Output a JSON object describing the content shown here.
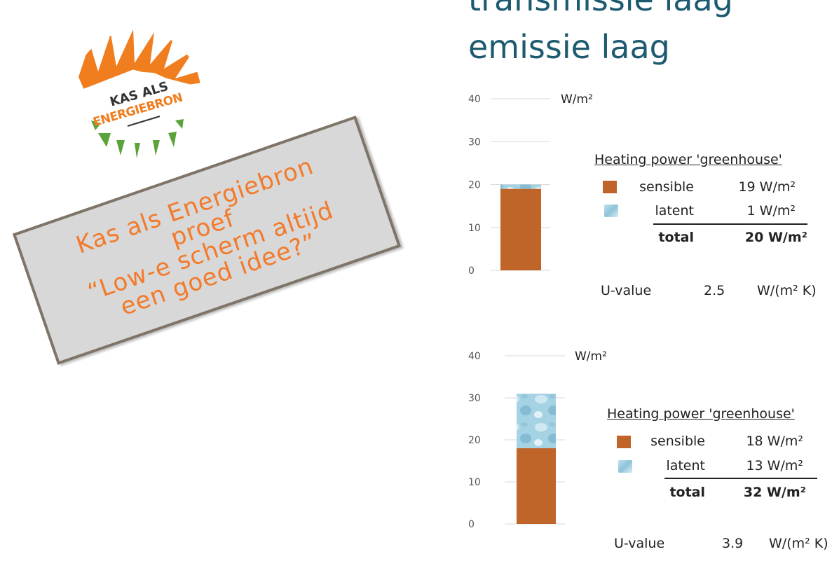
{
  "title": {
    "line1": "transmissie laag",
    "line2": "emissie laag"
  },
  "logo": {
    "line1": "KAS ALS",
    "line2": "ENERGIEBRON"
  },
  "stamp": {
    "lines": [
      "Kas als Energiebron",
      "proef",
      "“Low-e scherm altijd",
      "een goed idee?”"
    ]
  },
  "colors": {
    "title": "#1d5a70",
    "sensible": "#c0652a",
    "latent": "#a6d3e4",
    "stamp_text": "#f37a2a",
    "logo_orange": "#f07d1e",
    "logo_green": "#5aa33a"
  },
  "chart_data": [
    {
      "type": "bar",
      "stacked": true,
      "unit": "W/m²",
      "ylim": [
        0,
        40
      ],
      "yticks": [
        0,
        10,
        20,
        30,
        40
      ],
      "series": [
        {
          "name": "sensible",
          "values": [
            19
          ]
        },
        {
          "name": "latent",
          "values": [
            1
          ]
        }
      ],
      "legend": {
        "title": "Heating power 'greenhouse'",
        "rows": [
          {
            "label": "sensible",
            "value": "19 W/m²"
          },
          {
            "label": "latent",
            "value": "1 W/m²"
          },
          {
            "label": "total",
            "value": "20 W/m²"
          }
        ],
        "placement": "right"
      },
      "u_value": {
        "label": "U-value",
        "value": "2.5",
        "unit": "W/(m² K)"
      }
    },
    {
      "type": "bar",
      "stacked": true,
      "unit": "W/m²",
      "ylim": [
        0,
        40
      ],
      "yticks": [
        0,
        10,
        20,
        30,
        40
      ],
      "series": [
        {
          "name": "sensible",
          "values": [
            18
          ]
        },
        {
          "name": "latent",
          "values": [
            13
          ]
        }
      ],
      "legend": {
        "title": "Heating power 'greenhouse'",
        "rows": [
          {
            "label": "sensible",
            "value": "18 W/m²"
          },
          {
            "label": "latent",
            "value": "13 W/m²"
          },
          {
            "label": "total",
            "value": "32 W/m²"
          }
        ],
        "placement": "right"
      },
      "u_value": {
        "label": "U-value",
        "value": "3.9",
        "unit": "W/(m² K)"
      }
    }
  ]
}
